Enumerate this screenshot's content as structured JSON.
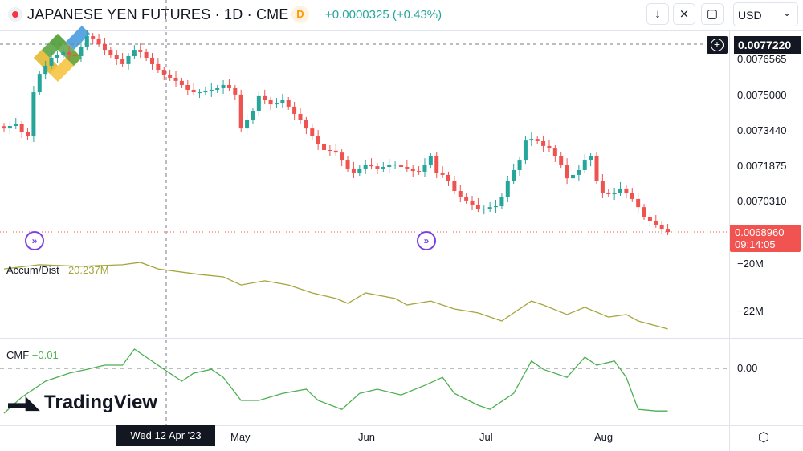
{
  "header": {
    "title": "JAPANESE YEN FUTURES · 1D · CME",
    "interval_badge": "D",
    "change": "+0.0000325 (+0.43%)",
    "currency": "USD",
    "buttons": [
      "down-arrow",
      "collapse",
      "fullscreen"
    ]
  },
  "price_axis": {
    "labels": [
      "0.0076565",
      "0.0075000",
      "0.0073440",
      "0.0071875",
      "0.0070310"
    ],
    "crosshair_price": "0.0077220",
    "last_price": "0.0068960",
    "countdown": "09:14:05"
  },
  "indicators": {
    "ad": {
      "name": "Accum/Dist",
      "value": "−20.237M",
      "axis": [
        "−20M",
        "−22M"
      ],
      "color": "#a5a53c"
    },
    "cmf": {
      "name": "CMF",
      "value": "−0.01",
      "axis": [
        "0.00"
      ],
      "color": "#4caf50"
    }
  },
  "time_axis": {
    "labels": [
      "May",
      "Jun",
      "Jul",
      "Aug"
    ],
    "crosshair_date": "Wed 12 Apr '23"
  },
  "branding": {
    "tradingview": "TradingView"
  },
  "colors": {
    "up": "#26a69a",
    "down": "#ef5350"
  },
  "chart_data": [
    {
      "type": "candlestick",
      "ylim": [
        0.00683,
        0.00776
      ],
      "closes": [
        0.007351,
        0.007362,
        0.007369,
        0.007334,
        0.007316,
        0.00751,
        0.007591,
        0.007627,
        0.007662,
        0.007676,
        0.007687,
        0.007676,
        0.007669,
        0.007711,
        0.007757,
        0.007747,
        0.007722,
        0.007697,
        0.007676,
        0.007655,
        0.007634,
        0.007669,
        0.007697,
        0.007687,
        0.007662,
        0.007634,
        0.007609,
        0.007588,
        0.007574,
        0.00756,
        0.007542,
        0.007521,
        0.00751,
        0.00751,
        0.007514,
        0.007521,
        0.007528,
        0.007542,
        0.007528,
        0.0075,
        0.007351,
        0.007387,
        0.007429,
        0.007493,
        0.007475,
        0.007457,
        0.007464,
        0.007475,
        0.007447,
        0.007415,
        0.007387,
        0.007351,
        0.007316,
        0.007281,
        0.007256,
        0.007253,
        0.007245,
        0.00721,
        0.007175,
        0.007157,
        0.007175,
        0.007192,
        0.007185,
        0.007175,
        0.007182,
        0.007189,
        0.007192,
        0.007182,
        0.007175,
        0.007164,
        0.007161,
        0.007192,
        0.007228,
        0.007157,
        0.007147,
        0.007122,
        0.007076,
        0.007051,
        0.007034,
        0.007016,
        0.006998,
        0.006998,
        0.007005,
        0.007009,
        0.007051,
        0.007122,
        0.007168,
        0.00721,
        0.007298,
        0.007305,
        0.007295,
        0.007274,
        0.007263,
        0.007228,
        0.007192,
        0.007132,
        0.007147,
        0.007168,
        0.00721,
        0.007228,
        0.007122,
        0.007069,
        0.007062,
        0.007069,
        0.007087,
        0.007069,
        0.007041,
        0.007005,
        0.006963,
        0.006942,
        0.006928,
        0.00691,
        0.006896
      ]
    },
    {
      "type": "line",
      "name": "Accum/Dist",
      "unit": "M",
      "points": [
        [
          0,
          -20.21
        ],
        [
          6,
          -20.03
        ],
        [
          13,
          -20.1
        ],
        [
          20,
          -20.03
        ],
        [
          23,
          -19.93
        ],
        [
          26,
          -20.21
        ],
        [
          33,
          -20.45
        ],
        [
          37,
          -20.55
        ],
        [
          40,
          -20.9
        ],
        [
          44,
          -20.72
        ],
        [
          48,
          -20.9
        ],
        [
          52,
          -21.24
        ],
        [
          56,
          -21.48
        ],
        [
          58,
          -21.69
        ],
        [
          61,
          -21.24
        ],
        [
          66,
          -21.48
        ],
        [
          68,
          -21.76
        ],
        [
          72,
          -21.59
        ],
        [
          76,
          -21.93
        ],
        [
          80,
          -22.1
        ],
        [
          84,
          -22.45
        ],
        [
          86,
          -22.1
        ],
        [
          89,
          -21.59
        ],
        [
          91,
          -21.76
        ],
        [
          95,
          -22.17
        ],
        [
          98,
          -21.86
        ],
        [
          102,
          -22.28
        ],
        [
          105,
          -22.17
        ],
        [
          107,
          -22.45
        ],
        [
          112,
          -22.79
        ]
      ]
    },
    {
      "type": "line",
      "name": "CMF",
      "points": [
        [
          0,
          -0.14
        ],
        [
          3,
          -0.09
        ],
        [
          7,
          -0.04
        ],
        [
          11,
          -0.015
        ],
        [
          14,
          -0.003
        ],
        [
          17,
          0.01
        ],
        [
          20,
          0.01
        ],
        [
          22,
          0.06
        ],
        [
          24,
          0.035
        ],
        [
          27,
          -0.003
        ],
        [
          30,
          -0.04
        ],
        [
          32,
          -0.015
        ],
        [
          35,
          -0.003
        ],
        [
          37,
          -0.028
        ],
        [
          40,
          -0.1
        ],
        [
          43,
          -0.1
        ],
        [
          47,
          -0.078
        ],
        [
          51,
          -0.065
        ],
        [
          53,
          -0.1
        ],
        [
          57,
          -0.128
        ],
        [
          60,
          -0.078
        ],
        [
          63,
          -0.065
        ],
        [
          67,
          -0.083
        ],
        [
          71,
          -0.053
        ],
        [
          74,
          -0.028
        ],
        [
          76,
          -0.078
        ],
        [
          80,
          -0.115
        ],
        [
          82,
          -0.128
        ],
        [
          86,
          -0.078
        ],
        [
          89,
          0.023
        ],
        [
          91,
          -0.003
        ],
        [
          95,
          -0.028
        ],
        [
          98,
          0.035
        ],
        [
          100,
          0.01
        ],
        [
          103,
          0.023
        ],
        [
          105,
          -0.028
        ],
        [
          107,
          -0.128
        ],
        [
          110,
          -0.133
        ],
        [
          112,
          -0.133
        ]
      ]
    }
  ]
}
